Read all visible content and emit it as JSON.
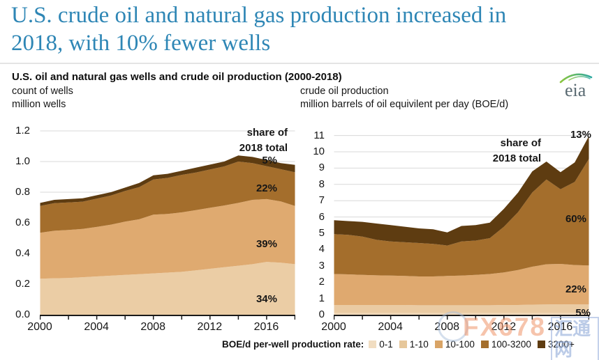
{
  "header": {
    "line1": "U.S. crude oil and natural gas production increased in",
    "line2": "2018, with 10% fewer wells"
  },
  "chart_header": {
    "title": "U.S. oil and natural gas wells and crude oil production (2000-2018)",
    "logo_text": "eia"
  },
  "chart_data": [
    {
      "type": "area",
      "stacked": true,
      "subtitle_line1": "count of wells",
      "subtitle_line2": "million wells",
      "x": [
        2000,
        2001,
        2002,
        2003,
        2004,
        2005,
        2006,
        2007,
        2008,
        2009,
        2010,
        2011,
        2012,
        2013,
        2014,
        2015,
        2016,
        2017,
        2018
      ],
      "xtick_labels": [
        "2000",
        "2004",
        "2008",
        "2012",
        "2016"
      ],
      "ylim": [
        0,
        1.2
      ],
      "yticks": [
        "0.0",
        "0.2",
        "0.4",
        "0.6",
        "0.8",
        "1.0",
        "1.2"
      ],
      "grid": true,
      "legend_position": "bottom",
      "annotations": {
        "share_header": "share of\n2018 total"
      },
      "series": [
        {
          "name": "0-1",
          "color": "#EBCDA5",
          "share_of_2018": "34%",
          "values": [
            0.235,
            0.238,
            0.24,
            0.245,
            0.25,
            0.255,
            0.26,
            0.265,
            0.27,
            0.275,
            0.28,
            0.29,
            0.3,
            0.31,
            0.32,
            0.33,
            0.345,
            0.34,
            0.33
          ]
        },
        {
          "name": "1-10",
          "color": "#DFAA70",
          "share_of_2018": "39%",
          "values": [
            0.3,
            0.31,
            0.313,
            0.315,
            0.323,
            0.333,
            0.348,
            0.358,
            0.383,
            0.383,
            0.388,
            0.393,
            0.398,
            0.403,
            0.41,
            0.42,
            0.41,
            0.4,
            0.38
          ]
        },
        {
          "name": "10-100",
          "color": "#A46E2C",
          "share_of_2018": "22%",
          "values": [
            0.175,
            0.18,
            0.18,
            0.178,
            0.185,
            0.19,
            0.2,
            0.21,
            0.23,
            0.235,
            0.245,
            0.245,
            0.25,
            0.255,
            0.27,
            0.24,
            0.215,
            0.21,
            0.22
          ]
        },
        {
          "name": "100-3200",
          "color": "#5E3C11",
          "share_of_2018": "5%",
          "values": [
            0.02,
            0.022,
            0.022,
            0.022,
            0.022,
            0.022,
            0.022,
            0.027,
            0.027,
            0.027,
            0.027,
            0.032,
            0.032,
            0.032,
            0.04,
            0.04,
            0.04,
            0.04,
            0.048
          ]
        }
      ]
    },
    {
      "type": "area",
      "stacked": true,
      "subtitle_line1": "crude oil production",
      "subtitle_line2": "million barrels of oil equivilent per day (BOE/d)",
      "x": [
        2000,
        2001,
        2002,
        2003,
        2004,
        2005,
        2006,
        2007,
        2008,
        2009,
        2010,
        2011,
        2012,
        2013,
        2014,
        2015,
        2016,
        2017,
        2018
      ],
      "xtick_labels": [
        "2000",
        "2004",
        "2008",
        "2012",
        "2016"
      ],
      "ylim": [
        0,
        11
      ],
      "yticks": [
        "0",
        "1",
        "2",
        "3",
        "4",
        "5",
        "6",
        "7",
        "8",
        "9",
        "10",
        "11"
      ],
      "grid": true,
      "legend_position": "bottom",
      "annotations": {
        "share_header": "share of\n2018 total"
      },
      "series": [
        {
          "name": "0-1",
          "color": "#F0D7B7",
          "share_of_2018": null,
          "values": [
            0.1,
            0.1,
            0.1,
            0.1,
            0.1,
            0.1,
            0.1,
            0.1,
            0.1,
            0.1,
            0.1,
            0.1,
            0.1,
            0.1,
            0.1,
            0.1,
            0.1,
            0.1,
            0.1
          ]
        },
        {
          "name": "1-10",
          "color": "#EACBA3",
          "share_of_2018": "5%",
          "values": [
            0.5,
            0.5,
            0.5,
            0.5,
            0.5,
            0.5,
            0.48,
            0.48,
            0.48,
            0.48,
            0.48,
            0.48,
            0.5,
            0.5,
            0.52,
            0.53,
            0.54,
            0.53,
            0.53
          ]
        },
        {
          "name": "10-100",
          "color": "#DFA96F",
          "share_of_2018": "22%",
          "values": [
            1.9,
            1.88,
            1.85,
            1.82,
            1.8,
            1.78,
            1.77,
            1.77,
            1.8,
            1.82,
            1.87,
            1.92,
            2.0,
            2.15,
            2.33,
            2.47,
            2.48,
            2.42,
            2.39
          ]
        },
        {
          "name": "100-3200",
          "color": "#A46E2C",
          "share_of_2018": "60%",
          "values": [
            2.45,
            2.42,
            2.35,
            2.18,
            2.1,
            2.07,
            2.05,
            2.0,
            1.87,
            2.1,
            2.1,
            2.2,
            2.8,
            3.55,
            4.55,
            5.2,
            4.58,
            5.1,
            6.54
          ]
        },
        {
          "name": "3200+",
          "color": "#5E3C11",
          "share_of_2018": "13%",
          "values": [
            0.85,
            0.85,
            0.9,
            1.0,
            1.0,
            0.95,
            0.9,
            0.9,
            0.8,
            0.95,
            0.95,
            0.95,
            1.1,
            1.2,
            1.3,
            1.1,
            1.05,
            1.2,
            1.4
          ]
        }
      ]
    }
  ],
  "legend": {
    "label": "BOE/d per-well production rate:",
    "items": [
      {
        "label": "0-1",
        "color": "#F1DDC1"
      },
      {
        "label": "1-10",
        "color": "#E6C79B"
      },
      {
        "label": "10-100",
        "color": "#D9A466"
      },
      {
        "label": "100-3200",
        "color": "#A46E2C"
      },
      {
        "label": "3200+",
        "color": "#5E3C11"
      }
    ]
  },
  "watermark": {
    "brand": "FX678",
    "stamp": "汇通网"
  }
}
